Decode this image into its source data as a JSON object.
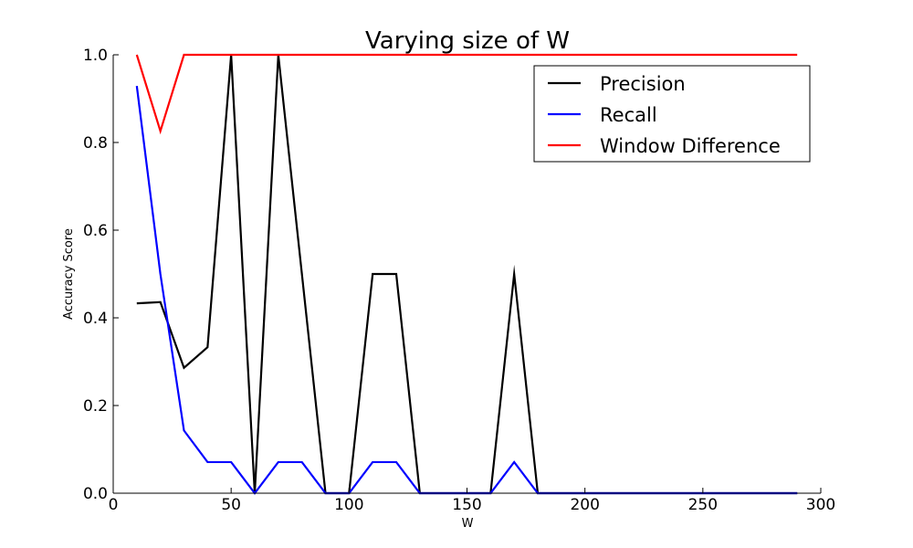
{
  "chart_data": {
    "type": "line",
    "title": "Varying size of W",
    "xlabel": "W",
    "ylabel": "Accuracy Score",
    "xlim": [
      0,
      300
    ],
    "ylim": [
      0.0,
      1.0
    ],
    "x_ticks": [
      0,
      50,
      100,
      150,
      200,
      250,
      300
    ],
    "x_tick_labels": [
      "0",
      "50",
      "100",
      "150",
      "200",
      "250",
      "300"
    ],
    "y_ticks": [
      0.0,
      0.2,
      0.4,
      0.6,
      0.8,
      1.0
    ],
    "y_tick_labels": [
      "0.0",
      "0.2",
      "0.4",
      "0.6",
      "0.8",
      "1.0"
    ],
    "grid": false,
    "legend_position": "top-right",
    "x": [
      10,
      20,
      30,
      40,
      50,
      60,
      70,
      80,
      90,
      100,
      110,
      120,
      130,
      140,
      150,
      160,
      170,
      180,
      190,
      200,
      210,
      220,
      230,
      240,
      250,
      260,
      270,
      280,
      290
    ],
    "series": [
      {
        "name": "Precision",
        "color": "#000000",
        "values": [
          0.433,
          0.436,
          0.286,
          0.333,
          1.0,
          0.0,
          1.0,
          0.5,
          0.0,
          0.0,
          0.5,
          0.5,
          0.0,
          0.0,
          0.0,
          0.0,
          0.5,
          0.0,
          0.0,
          0.0,
          0.0,
          0.0,
          0.0,
          0.0,
          0.0,
          0.0,
          0.0,
          0.0,
          0.0
        ]
      },
      {
        "name": "Recall",
        "color": "#0000ff",
        "values": [
          0.929,
          0.5,
          0.143,
          0.071,
          0.071,
          0.0,
          0.071,
          0.071,
          0.0,
          0.0,
          0.071,
          0.071,
          0.0,
          0.0,
          0.0,
          0.0,
          0.071,
          0.0,
          0.0,
          0.0,
          0.0,
          0.0,
          0.0,
          0.0,
          0.0,
          0.0,
          0.0,
          0.0,
          0.0
        ]
      },
      {
        "name": "Window Difference",
        "color": "#ff0000",
        "values": [
          1.0,
          0.826,
          1.0,
          1.0,
          1.0,
          1.0,
          1.0,
          1.0,
          1.0,
          1.0,
          1.0,
          1.0,
          1.0,
          1.0,
          1.0,
          1.0,
          1.0,
          1.0,
          1.0,
          1.0,
          1.0,
          1.0,
          1.0,
          1.0,
          1.0,
          1.0,
          1.0,
          1.0,
          1.0
        ]
      }
    ]
  }
}
